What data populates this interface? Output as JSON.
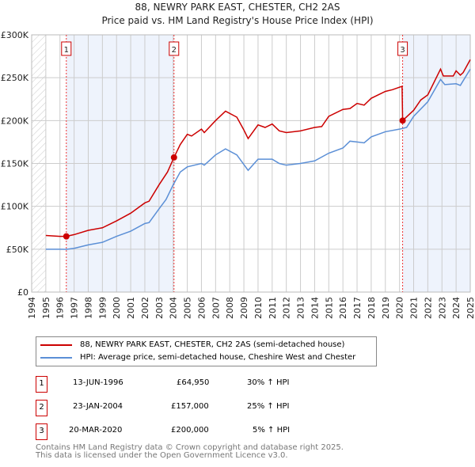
{
  "chart_data": {
    "type": "line",
    "title": "88, NEWRY PARK EAST, CHESTER, CH2 2AS",
    "subtitle": "Price paid vs. HM Land Registry's House Price Index (HPI)",
    "xlim": [
      1994,
      2025
    ],
    "ylim": [
      0,
      300000
    ],
    "y_ticks": [
      {
        "v": 0,
        "label": "£0"
      },
      {
        "v": 50000,
        "label": "£50K"
      },
      {
        "v": 100000,
        "label": "£100K"
      },
      {
        "v": 150000,
        "label": "£150K"
      },
      {
        "v": 200000,
        "label": "£200K"
      },
      {
        "v": 250000,
        "label": "£250K"
      },
      {
        "v": 300000,
        "label": "£300K"
      }
    ],
    "x_ticks": [
      "1994",
      "1995",
      "1996",
      "1997",
      "1998",
      "1999",
      "2000",
      "2001",
      "2002",
      "2003",
      "2004",
      "2005",
      "2006",
      "2007",
      "2008",
      "2009",
      "2010",
      "2011",
      "2012",
      "2013",
      "2014",
      "2015",
      "2016",
      "2017",
      "2018",
      "2019",
      "2020",
      "2021",
      "2022",
      "2023",
      "2024",
      "2025"
    ],
    "grid": true,
    "series": [
      {
        "name": "88, NEWRY PARK EAST, CHESTER, CH2 2AS (semi-detached house)",
        "color": "#cc0000",
        "points": [
          [
            1995,
            66
          ],
          [
            1996,
            65
          ],
          [
            1996.45,
            64.95
          ],
          [
            1997,
            67
          ],
          [
            1998,
            72
          ],
          [
            1999,
            75
          ],
          [
            2000,
            83
          ],
          [
            2001,
            92
          ],
          [
            2002,
            104
          ],
          [
            2002.3,
            106
          ],
          [
            2003,
            125
          ],
          [
            2003.6,
            140
          ],
          [
            2004.06,
            157
          ],
          [
            2004.5,
            172
          ],
          [
            2005,
            184
          ],
          [
            2005.3,
            182
          ],
          [
            2006,
            190
          ],
          [
            2006.2,
            186
          ],
          [
            2007,
            200
          ],
          [
            2007.7,
            211
          ],
          [
            2008.5,
            204
          ],
          [
            2009,
            189
          ],
          [
            2009.3,
            179
          ],
          [
            2010,
            195
          ],
          [
            2010.5,
            192
          ],
          [
            2011,
            196
          ],
          [
            2011.5,
            188
          ],
          [
            2012,
            186
          ],
          [
            2013,
            188
          ],
          [
            2014,
            192
          ],
          [
            2014.5,
            193
          ],
          [
            2015,
            205
          ],
          [
            2016,
            213
          ],
          [
            2016.5,
            214
          ],
          [
            2017,
            220
          ],
          [
            2017.5,
            218
          ],
          [
            2018,
            226
          ],
          [
            2019,
            234
          ],
          [
            2019.5,
            236
          ],
          [
            2020.18,
            240
          ],
          [
            2020.22,
            200
          ],
          [
            2021,
            212
          ],
          [
            2021.5,
            224
          ],
          [
            2022,
            230
          ],
          [
            2022.9,
            260
          ],
          [
            2023.1,
            252
          ],
          [
            2023.8,
            252
          ],
          [
            2024,
            258
          ],
          [
            2024.3,
            253
          ],
          [
            2024.5,
            256
          ],
          [
            2025,
            271
          ]
        ]
      },
      {
        "name": "HPI: Average price, semi-detached house, Cheshire West and Chester",
        "color": "#5b8fd6",
        "points": [
          [
            1995,
            50
          ],
          [
            1996,
            50
          ],
          [
            1996.45,
            49.8
          ],
          [
            1997,
            51
          ],
          [
            1998,
            55
          ],
          [
            1999,
            58
          ],
          [
            2000,
            65
          ],
          [
            2001,
            71
          ],
          [
            2002,
            80
          ],
          [
            2002.3,
            81
          ],
          [
            2003,
            97
          ],
          [
            2003.5,
            108
          ],
          [
            2004,
            125
          ],
          [
            2004.5,
            140
          ],
          [
            2005,
            146
          ],
          [
            2006,
            150
          ],
          [
            2006.2,
            148
          ],
          [
            2007,
            160
          ],
          [
            2007.7,
            167
          ],
          [
            2008.5,
            160
          ],
          [
            2009.3,
            142
          ],
          [
            2010,
            155
          ],
          [
            2011,
            155
          ],
          [
            2011.5,
            150
          ],
          [
            2012,
            148
          ],
          [
            2013,
            150
          ],
          [
            2014,
            153
          ],
          [
            2015,
            162
          ],
          [
            2016,
            168
          ],
          [
            2016.5,
            176
          ],
          [
            2017,
            175
          ],
          [
            2017.5,
            174
          ],
          [
            2018,
            181
          ],
          [
            2019,
            187
          ],
          [
            2020,
            190
          ],
          [
            2020.5,
            192
          ],
          [
            2021,
            205
          ],
          [
            2022,
            222
          ],
          [
            2022.9,
            248
          ],
          [
            2023.2,
            242
          ],
          [
            2024,
            243
          ],
          [
            2024.3,
            241
          ],
          [
            2025,
            260
          ]
        ]
      }
    ],
    "sales": [
      {
        "n": "1",
        "year": 1996.45,
        "value": 64.95
      },
      {
        "n": "2",
        "year": 2004.06,
        "value": 157
      },
      {
        "n": "3",
        "year": 2020.22,
        "value": 200
      }
    ],
    "shaded": [
      [
        1996.45,
        2004.06
      ],
      [
        2020.22,
        2025
      ]
    ],
    "units_note": "point values in £ thousands"
  },
  "legend": {
    "red": "88, NEWRY PARK EAST, CHESTER, CH2 2AS (semi-detached house)",
    "blue": "HPI: Average price, semi-detached house, Cheshire West and Chester"
  },
  "table": [
    {
      "n": "1",
      "date": "13-JUN-1996",
      "price": "£64,950",
      "hpi": "30% ↑ HPI"
    },
    {
      "n": "2",
      "date": "23-JAN-2004",
      "price": "£157,000",
      "hpi": "25% ↑ HPI"
    },
    {
      "n": "3",
      "date": "20-MAR-2020",
      "price": "£200,000",
      "hpi": "5% ↑ HPI"
    }
  ],
  "footer": [
    "Contains HM Land Registry data © Crown copyright and database right 2025.",
    "This data is licensed under the Open Government Licence v3.0."
  ]
}
